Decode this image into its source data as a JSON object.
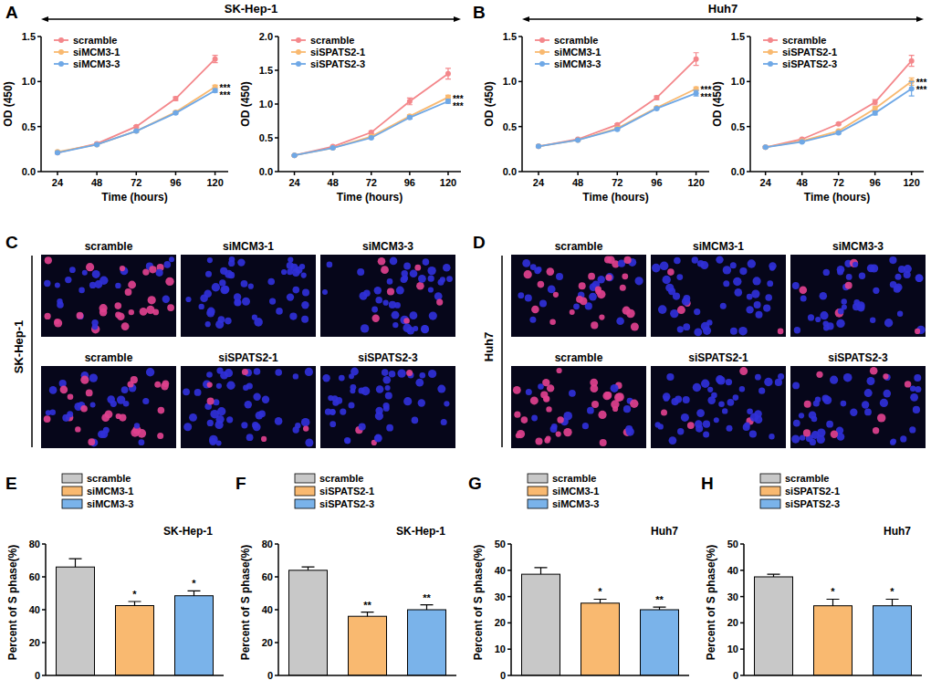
{
  "figure": {
    "panel_labels": [
      "A",
      "B",
      "C",
      "D",
      "E",
      "F",
      "G",
      "H"
    ],
    "headers": [
      "SK-Hep-1",
      "Huh7"
    ],
    "images": [
      {
        "cell_line": "SK-Hep-1",
        "rows": [
          [
            "scramble",
            "siMCM3-1",
            "siMCM3-3"
          ],
          [
            "scramble",
            "siSPATS2-1",
            "siSPATS2-3"
          ]
        ]
      },
      {
        "cell_line": "Huh7",
        "rows": [
          [
            "scramble",
            "siMCM3-1",
            "siMCM3-3"
          ],
          [
            "scramble",
            "siSPATS2-1",
            "siSPATS2-3"
          ]
        ]
      }
    ]
  },
  "chart_data": [
    {
      "type": "line",
      "x_label": "Time (hours)",
      "y_label": "OD (450)",
      "x": [
        24,
        48,
        72,
        96,
        120
      ],
      "xlim": [
        14,
        128
      ],
      "xticks": [
        24,
        48,
        72,
        96,
        120
      ],
      "ylim": [
        0,
        1.5
      ],
      "yticks": [
        {
          "value": 0,
          "label": "0.0"
        },
        {
          "value": 0.5,
          "label": "0.5"
        },
        {
          "value": 1,
          "label": "1.0"
        },
        {
          "value": 1.5,
          "label": "1.5"
        }
      ],
      "legend": "top-left",
      "marker": "circle",
      "series": [
        {
          "name": "scramble",
          "color": "#f4878b",
          "values": [
            0.21,
            0.31,
            0.5,
            0.81,
            1.25
          ],
          "errors": [
            0.01,
            0.01,
            0.01,
            0.02,
            0.04
          ]
        },
        {
          "name": "siMCM3-1",
          "color": "#f9b970",
          "values": [
            0.22,
            0.3,
            0.45,
            0.66,
            0.94
          ],
          "errors": [
            0.01,
            0.01,
            0.01,
            0.01,
            0.02
          ],
          "significance": "***"
        },
        {
          "name": "siMCM3-3",
          "color": "#6fa8e6",
          "values": [
            0.21,
            0.3,
            0.45,
            0.65,
            0.9
          ],
          "errors": [
            0.01,
            0.01,
            0.01,
            0.01,
            0.02
          ],
          "significance": "***"
        }
      ]
    },
    {
      "type": "line",
      "x_label": "Time (hours)",
      "y_label": "OD (450)",
      "x": [
        24,
        48,
        72,
        96,
        120
      ],
      "xlim": [
        14,
        128
      ],
      "xticks": [
        24,
        48,
        72,
        96,
        120
      ],
      "ylim": [
        0,
        2
      ],
      "yticks": [
        {
          "value": 0,
          "label": "0.0"
        },
        {
          "value": 0.5,
          "label": "0.5"
        },
        {
          "value": 1,
          "label": "1.0"
        },
        {
          "value": 1.5,
          "label": "1.5"
        },
        {
          "value": 2,
          "label": "2.0"
        }
      ],
      "legend": "top-left",
      "marker": "circle",
      "series": [
        {
          "name": "scramble",
          "color": "#f4878b",
          "values": [
            0.24,
            0.37,
            0.58,
            1.04,
            1.45
          ],
          "errors": [
            0.01,
            0.01,
            0.02,
            0.05,
            0.08
          ]
        },
        {
          "name": "siSPATS2-1",
          "color": "#f9b970",
          "values": [
            0.24,
            0.35,
            0.52,
            0.82,
            1.1
          ],
          "errors": [
            0.01,
            0.01,
            0.01,
            0.02,
            0.03
          ],
          "significance": "***"
        },
        {
          "name": "siSPATS2-3",
          "color": "#6fa8e6",
          "values": [
            0.24,
            0.35,
            0.5,
            0.8,
            1.04
          ],
          "errors": [
            0.01,
            0.01,
            0.01,
            0.02,
            0.03
          ],
          "significance": "***"
        }
      ]
    },
    {
      "type": "line",
      "x_label": "Time (hours)",
      "y_label": "OD (450)",
      "x": [
        24,
        48,
        72,
        96,
        120
      ],
      "xlim": [
        14,
        128
      ],
      "xticks": [
        24,
        48,
        72,
        96,
        120
      ],
      "ylim": [
        0,
        1.5
      ],
      "yticks": [
        {
          "value": 0,
          "label": "0.0"
        },
        {
          "value": 0.5,
          "label": "0.5"
        },
        {
          "value": 1,
          "label": "1.0"
        },
        {
          "value": 1.5,
          "label": "1.5"
        }
      ],
      "legend": "top-left",
      "marker": "circle",
      "series": [
        {
          "name": "scramble",
          "color": "#f4878b",
          "values": [
            0.28,
            0.36,
            0.52,
            0.82,
            1.25
          ],
          "errors": [
            0.01,
            0.01,
            0.01,
            0.02,
            0.07
          ]
        },
        {
          "name": "siMCM3-1",
          "color": "#f9b970",
          "values": [
            0.28,
            0.35,
            0.48,
            0.71,
            0.92
          ],
          "errors": [
            0.01,
            0.01,
            0.01,
            0.01,
            0.02
          ],
          "significance": "***"
        },
        {
          "name": "siMCM3-3",
          "color": "#6fa8e6",
          "values": [
            0.28,
            0.35,
            0.47,
            0.7,
            0.87
          ],
          "errors": [
            0.01,
            0.01,
            0.01,
            0.01,
            0.03
          ],
          "significance": "***"
        }
      ]
    },
    {
      "type": "line",
      "x_label": "Time (hours)",
      "y_label": "OD (450)",
      "x": [
        24,
        48,
        72,
        96,
        120
      ],
      "xlim": [
        14,
        128
      ],
      "xticks": [
        24,
        48,
        72,
        96,
        120
      ],
      "ylim": [
        0,
        1.5
      ],
      "yticks": [
        {
          "value": 0,
          "label": "0.0"
        },
        {
          "value": 0.5,
          "label": "0.5"
        },
        {
          "value": 1,
          "label": "1.0"
        },
        {
          "value": 1.5,
          "label": "1.5"
        }
      ],
      "legend": "top-left",
      "marker": "circle",
      "series": [
        {
          "name": "scramble",
          "color": "#f4878b",
          "values": [
            0.27,
            0.36,
            0.53,
            0.77,
            1.23
          ],
          "errors": [
            0.01,
            0.01,
            0.01,
            0.03,
            0.06
          ]
        },
        {
          "name": "siSPATS2-1",
          "color": "#f9b970",
          "values": [
            0.27,
            0.34,
            0.45,
            0.7,
            1.0
          ],
          "errors": [
            0.01,
            0.01,
            0.01,
            0.02,
            0.04
          ],
          "significance": "***"
        },
        {
          "name": "siSPATS2-3",
          "color": "#6fa8e6",
          "values": [
            0.27,
            0.33,
            0.43,
            0.65,
            0.92
          ],
          "errors": [
            0.01,
            0.01,
            0.01,
            0.02,
            0.08
          ],
          "significance": "***"
        }
      ]
    },
    {
      "type": "bar",
      "title": "SK-Hep-1",
      "y_label": "Percent of S phase(%)",
      "categories": [
        "scramble",
        "siMCM3-1",
        "siMCM3-3"
      ],
      "values": [
        66,
        42.5,
        48.5
      ],
      "errors": [
        5,
        2.5,
        3
      ],
      "significance": [
        null,
        "*",
        "*"
      ],
      "colors": [
        "#c8c8c8",
        "#f9b970",
        "#7ab3ea"
      ],
      "ylim": [
        0,
        80
      ],
      "yticks": [
        0,
        20,
        40,
        60,
        80
      ],
      "legend": "top-left",
      "tick_labels": "y"
    },
    {
      "type": "bar",
      "title": "SK-Hep-1",
      "y_label": "Percent of S phase(%)",
      "categories": [
        "scramble",
        "siSPATS2-1",
        "siSPATS2-3"
      ],
      "values": [
        64,
        36,
        40
      ],
      "errors": [
        2,
        2.5,
        3
      ],
      "significance": [
        null,
        "**",
        "**"
      ],
      "colors": [
        "#c8c8c8",
        "#f9b970",
        "#7ab3ea"
      ],
      "ylim": [
        0,
        80
      ],
      "yticks": [
        0,
        20,
        40,
        60,
        80
      ],
      "legend": "top-left",
      "tick_labels": "y"
    },
    {
      "type": "bar",
      "title": "Huh7",
      "y_label": "Percent of S phase(%)",
      "categories": [
        "scramble",
        "siMCM3-1",
        "siMCM3-3"
      ],
      "values": [
        38.5,
        27.5,
        25
      ],
      "errors": [
        2.5,
        1.5,
        1
      ],
      "significance": [
        null,
        "*",
        "**"
      ],
      "colors": [
        "#c8c8c8",
        "#f9b970",
        "#7ab3ea"
      ],
      "ylim": [
        0,
        50
      ],
      "yticks": [
        0,
        10,
        20,
        30,
        40,
        50
      ],
      "legend": "top-left",
      "tick_labels": "y"
    },
    {
      "type": "bar",
      "title": "Huh7",
      "y_label": "Percent of S phase(%)",
      "categories": [
        "scramble",
        "siSPATS2-1",
        "siSPATS2-3"
      ],
      "values": [
        37.5,
        26.5,
        26.5
      ],
      "errors": [
        1,
        2.5,
        2.5
      ],
      "significance": [
        null,
        "*",
        "*"
      ],
      "colors": [
        "#c8c8c8",
        "#f9b970",
        "#7ab3ea"
      ],
      "ylim": [
        0,
        50
      ],
      "yticks": [
        0,
        10,
        20,
        30,
        40,
        50
      ],
      "legend": "top-left",
      "tick_labels": "y"
    }
  ]
}
